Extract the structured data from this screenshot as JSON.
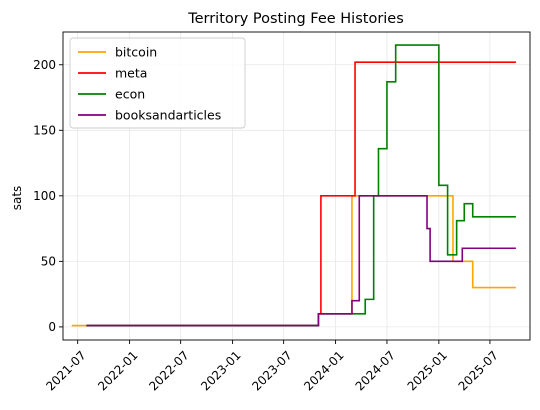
{
  "chart_data": {
    "type": "line",
    "title": "Territory Posting Fee Histories",
    "xlabel": "",
    "ylabel": "sats",
    "xlim": [
      "2021-05-10",
      "2025-11-20"
    ],
    "ylim": [
      -10,
      225
    ],
    "y_ticks": [
      0,
      50,
      100,
      150,
      200
    ],
    "x_ticks": [
      "2021-07",
      "2022-01",
      "2022-07",
      "2023-01",
      "2023-07",
      "2024-01",
      "2024-07",
      "2025-01",
      "2025-07"
    ],
    "x_tick_labels": [
      "2021-07",
      "2022-01",
      "2022-07",
      "2023-01",
      "2023-07",
      "2024-01",
      "2024-07",
      "2025-01",
      "2025-07"
    ],
    "grid": true,
    "legend_position": "top-left",
    "step": "post",
    "series": [
      {
        "name": "bitcoin",
        "color": "#ffa500",
        "points": [
          [
            "2021-06-10",
            1
          ],
          [
            "2023-11-01",
            10
          ],
          [
            "2024-02-28",
            100
          ],
          [
            "2025-02-20",
            50
          ],
          [
            "2025-05-01",
            30
          ],
          [
            "2025-10-01",
            30
          ]
        ]
      },
      {
        "name": "meta",
        "color": "#ff0000",
        "points": [
          [
            "2021-08-01",
            1
          ],
          [
            "2023-11-01",
            10
          ],
          [
            "2023-11-10",
            100
          ],
          [
            "2024-03-10",
            202
          ],
          [
            "2025-10-01",
            202
          ]
        ]
      },
      {
        "name": "econ",
        "color": "#008000",
        "points": [
          [
            "2021-08-01",
            1
          ],
          [
            "2023-11-01",
            10
          ],
          [
            "2024-03-20",
            10
          ],
          [
            "2024-04-15",
            21
          ],
          [
            "2024-05-15",
            100
          ],
          [
            "2024-06-01",
            136
          ],
          [
            "2024-07-01",
            187
          ],
          [
            "2024-08-01",
            215
          ],
          [
            "2025-01-01",
            108
          ],
          [
            "2025-02-01",
            55
          ],
          [
            "2025-03-05",
            81
          ],
          [
            "2025-04-01",
            94
          ],
          [
            "2025-05-01",
            84
          ],
          [
            "2025-10-01",
            84
          ]
        ]
      },
      {
        "name": "booksandarticles",
        "color": "#800080",
        "points": [
          [
            "2021-08-01",
            1
          ],
          [
            "2023-11-01",
            10
          ],
          [
            "2024-02-28",
            20
          ],
          [
            "2024-03-25",
            100
          ],
          [
            "2024-11-20",
            75
          ],
          [
            "2024-12-01",
            50
          ],
          [
            "2025-02-01",
            50
          ],
          [
            "2025-03-25",
            60
          ],
          [
            "2025-10-01",
            60
          ]
        ]
      }
    ]
  }
}
